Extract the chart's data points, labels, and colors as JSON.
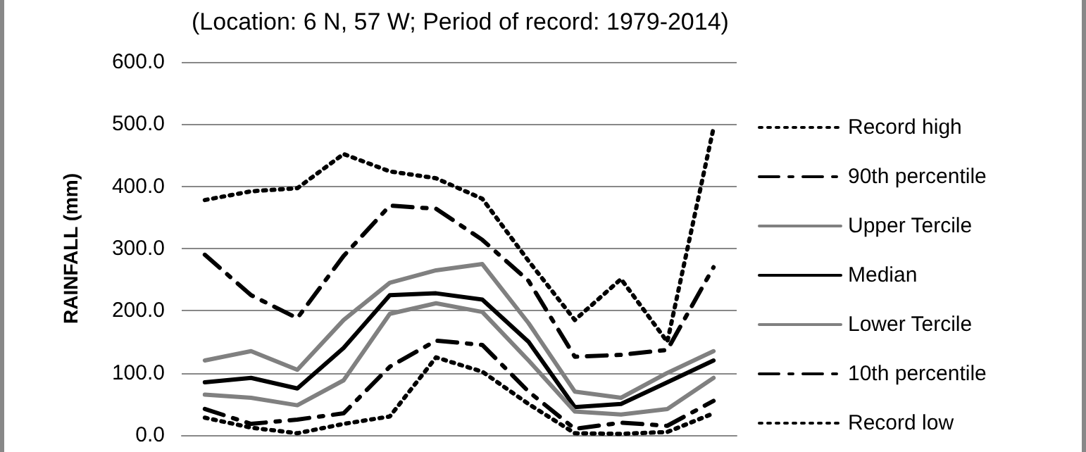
{
  "chart_data": {
    "type": "line",
    "title": "(Location: 6 N, 57 W; Period of record: 1979-2014)",
    "ylabel": "RAINFALL (mm)",
    "categories": [
      null,
      null,
      null,
      null,
      null,
      null,
      null,
      null,
      null,
      null,
      null,
      null
    ],
    "series": [
      {
        "name": "Record high",
        "color": "#000000",
        "line_style": "dotted",
        "values": [
          378,
          392,
          397,
          452,
          424,
          413,
          380,
          280,
          185,
          251,
          150,
          494
        ]
      },
      {
        "name": "90th percentile",
        "color": "#000000",
        "line_style": "dashed",
        "values": [
          290,
          225,
          188,
          288,
          369,
          364,
          314,
          248,
          126,
          129,
          137,
          270
        ]
      },
      {
        "name": "Upper Tercile",
        "color": "#808080",
        "line_style": "solid",
        "values": [
          120,
          135,
          105,
          185,
          245,
          265,
          275,
          180,
          70,
          60,
          100,
          135
        ]
      },
      {
        "name": "Median",
        "color": "#000000",
        "line_style": "solid",
        "values": [
          85,
          92,
          75,
          140,
          225,
          228,
          218,
          150,
          45,
          50,
          85,
          120
        ]
      },
      {
        "name": "Lower Tercile",
        "color": "#808080",
        "line_style": "solid",
        "values": [
          65,
          60,
          48,
          88,
          195,
          212,
          198,
          120,
          38,
          33,
          42,
          92
        ]
      },
      {
        "name": "10th percentile",
        "color": "#000000",
        "line_style": "dashed",
        "values": [
          42,
          18,
          25,
          35,
          110,
          152,
          145,
          70,
          10,
          20,
          15,
          55
        ]
      },
      {
        "name": "Record low",
        "color": "#000000",
        "line_style": "dotted",
        "values": [
          28,
          12,
          3,
          18,
          30,
          125,
          102,
          50,
          3,
          2,
          5,
          35
        ]
      }
    ],
    "ylim": [
      0,
      600
    ],
    "yticks": [
      {
        "value": 0,
        "label": "0.0"
      },
      {
        "value": 100,
        "label": "100.0"
      },
      {
        "value": 200,
        "label": "200.0"
      },
      {
        "value": 300,
        "label": "300.0"
      },
      {
        "value": 400,
        "label": "400.0"
      },
      {
        "value": 500,
        "label": "500.0"
      },
      {
        "value": 600,
        "label": "600.0"
      }
    ],
    "grid": "y",
    "legend": "right",
    "tick_labels": "y",
    "marker": "none"
  }
}
